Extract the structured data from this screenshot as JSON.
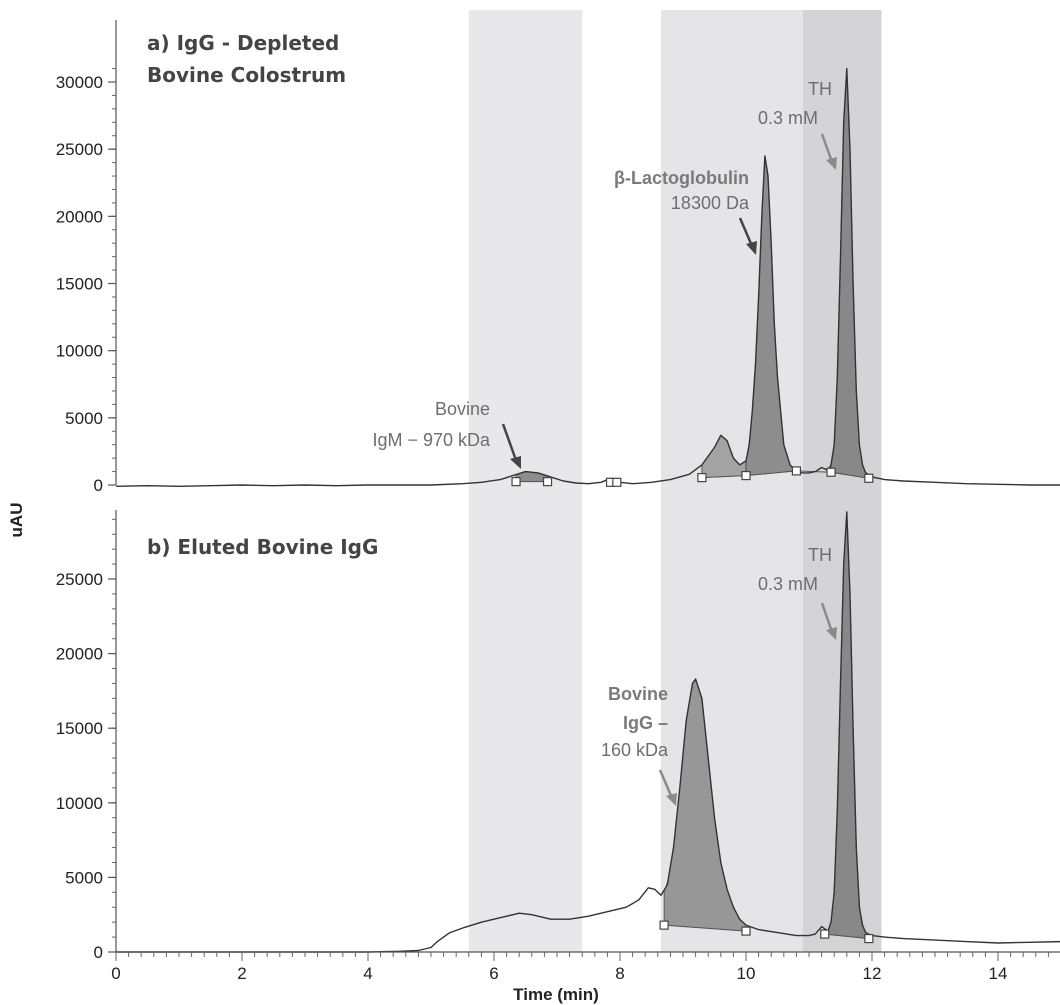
{
  "chart_data": {
    "type": "line",
    "shared_x_axis": {
      "label": "Time (min)",
      "range": [
        0,
        15
      ],
      "ticks": [
        0,
        2,
        4,
        6,
        8,
        10,
        12,
        14
      ],
      "tick_labels": [
        "0",
        "2",
        "4",
        "6",
        "8",
        "10",
        "12",
        "14"
      ]
    },
    "shared_y_label": "uAU",
    "shaded_bands": [
      {
        "x": [
          5.6,
          7.4
        ],
        "color": "#e8e8eb"
      },
      {
        "x": [
          8.65,
          10.9
        ],
        "color": "#e5e5e8"
      },
      {
        "x": [
          10.9,
          12.15
        ],
        "color": "#d4d4d7"
      }
    ],
    "panels": [
      {
        "title_line1": "a) IgG - Depleted",
        "title_line2": "Bovine Colostrum",
        "ylim": [
          0,
          31000
        ],
        "yticks": [
          0,
          5000,
          10000,
          15000,
          20000,
          25000,
          30000
        ],
        "ytick_labels": [
          "0",
          "5000",
          "10000",
          "15000",
          "20000",
          "25000",
          "30000"
        ],
        "series": [
          {
            "x": [
              0,
              0.5,
              1,
              1.5,
              2,
              2.5,
              3,
              3.5,
              4,
              4.5,
              5,
              5.5,
              5.8,
              6.1,
              6.3,
              6.5,
              6.7,
              6.9,
              7.1,
              7.3,
              7.5,
              7.7,
              7.85,
              8.0,
              8.2,
              8.5,
              8.8,
              9.1,
              9.3,
              9.5,
              9.6,
              9.7,
              9.8,
              9.9,
              10.0,
              10.05,
              10.1,
              10.15,
              10.2,
              10.25,
              10.3,
              10.35,
              10.4,
              10.45,
              10.5,
              10.6,
              10.7,
              10.8,
              10.9,
              11.0,
              11.1,
              11.2,
              11.3,
              11.35,
              11.4,
              11.45,
              11.5,
              11.55,
              11.6,
              11.65,
              11.7,
              11.75,
              11.8,
              11.85,
              11.9,
              12.0,
              12.2,
              12.5,
              13,
              13.5,
              14,
              14.5,
              15
            ],
            "y": [
              -100,
              -50,
              -100,
              -50,
              0,
              -50,
              0,
              -50,
              0,
              0,
              0,
              100,
              200,
              400,
              700,
              1000,
              900,
              600,
              300,
              150,
              100,
              200,
              500,
              200,
              100,
              200,
              400,
              800,
              1500,
              2800,
              3700,
              3300,
              2000,
              1500,
              1800,
              3000,
              5500,
              9000,
              14000,
              20000,
              24500,
              23000,
              18000,
              12000,
              8000,
              3000,
              1500,
              1000,
              900,
              900,
              1000,
              1300,
              1100,
              1500,
              3000,
              8000,
              17000,
              27000,
              31000,
              25000,
              15000,
              7000,
              3000,
              1500,
              900,
              600,
              400,
              300,
              200,
              100,
              50,
              0,
              0
            ]
          }
        ],
        "integration_markers": [
          [
            6.35,
            250
          ],
          [
            6.85,
            250
          ],
          [
            7.85,
            200
          ],
          [
            7.95,
            200
          ],
          [
            9.3,
            550
          ],
          [
            10.0,
            700
          ],
          [
            10.8,
            1050
          ],
          [
            11.35,
            950
          ],
          [
            11.95,
            500
          ]
        ],
        "annotations": [
          {
            "line1": "Bovine",
            "line2": "IgM − 970 kDa"
          },
          {
            "line1": "β-Lactoglobulin",
            "line2": "18300 Da"
          },
          {
            "line1": "TH",
            "line2": "0.3 mM"
          }
        ]
      },
      {
        "title_line1": "b) Eluted Bovine IgG",
        "ylim": [
          0,
          30000
        ],
        "yticks": [
          0,
          5000,
          10000,
          15000,
          20000,
          25000
        ],
        "ytick_labels": [
          "0",
          "5000",
          "10000",
          "15000",
          "20000",
          "25000"
        ],
        "series": [
          {
            "x": [
              0,
              0.5,
              1,
              1.5,
              2,
              2.5,
              3,
              3.5,
              4,
              4.5,
              4.8,
              5.0,
              5.1,
              5.3,
              5.5,
              5.8,
              6.1,
              6.4,
              6.6,
              6.9,
              7.2,
              7.5,
              7.8,
              8.1,
              8.3,
              8.45,
              8.55,
              8.65,
              8.75,
              8.85,
              8.95,
              9.05,
              9.15,
              9.2,
              9.3,
              9.4,
              9.5,
              9.6,
              9.7,
              9.8,
              9.9,
              10.0,
              10.2,
              10.5,
              10.8,
              11.0,
              11.1,
              11.2,
              11.3,
              11.35,
              11.4,
              11.45,
              11.5,
              11.55,
              11.6,
              11.65,
              11.7,
              11.75,
              11.8,
              11.85,
              11.9,
              12.0,
              12.2,
              12.5,
              13,
              13.5,
              14,
              14.5,
              15
            ],
            "y": [
              0,
              0,
              0,
              0,
              0,
              0,
              0,
              0,
              0,
              50,
              100,
              300,
              700,
              1300,
              1600,
              2000,
              2300,
              2600,
              2500,
              2200,
              2200,
              2400,
              2700,
              3000,
              3500,
              4300,
              4200,
              3800,
              4500,
              7000,
              11000,
              15500,
              18000,
              18300,
              17000,
              13000,
              9000,
              6000,
              4200,
              3000,
              2200,
              1800,
              1500,
              1300,
              1100,
              1100,
              1200,
              1700,
              1400,
              2000,
              4000,
              9500,
              18000,
              26000,
              29500,
              24000,
              15000,
              7000,
              3000,
              1800,
              1300,
              1100,
              1000,
              900,
              800,
              700,
              600,
              650,
              700
            ]
          }
        ],
        "integration_markers": [
          [
            8.7,
            1800
          ],
          [
            10.0,
            1400
          ],
          [
            11.25,
            1200
          ],
          [
            11.95,
            900
          ]
        ],
        "annotations": [
          {
            "line1": "Bovine",
            "line2": "IgG –",
            "line3": "160 kDa"
          },
          {
            "line1": "TH",
            "line2": "0.3 mM"
          }
        ]
      }
    ]
  }
}
